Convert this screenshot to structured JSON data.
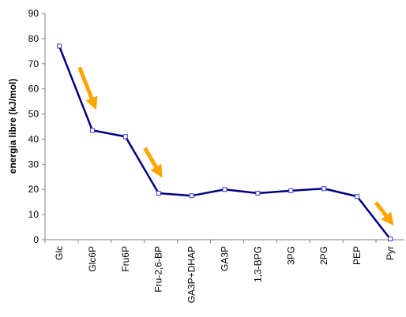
{
  "chart_data": {
    "type": "line",
    "title": "",
    "xlabel": "",
    "ylabel": "energia libre  (kJ/mol)",
    "ylim": [
      0,
      90
    ],
    "yticks": [
      0,
      10,
      20,
      30,
      40,
      50,
      60,
      70,
      80,
      90
    ],
    "grid": false,
    "legend": "none",
    "categories": [
      "Glc",
      "Glc6P",
      "Fru6P",
      "Fru-2,6-BP",
      "GA3P+DHAP",
      "GA3P",
      "1,3-BPG",
      "3PG",
      "2PG",
      "PEP",
      "Pyr"
    ],
    "series": [
      {
        "values": [
          77,
          43.5,
          41,
          18.5,
          17.5,
          20,
          18.5,
          19.5,
          20.3,
          17.2,
          0.3
        ],
        "color": "#000080",
        "marker": "open-square"
      }
    ],
    "annotations": [
      {
        "type": "arrow",
        "color": "#FFA500",
        "between": [
          "Glc",
          "Glc6P"
        ]
      },
      {
        "type": "arrow",
        "color": "#FFA500",
        "between": [
          "Fru6P",
          "Fru-2,6-BP"
        ]
      },
      {
        "type": "arrow",
        "color": "#FFA500",
        "between": [
          "PEP",
          "Pyr"
        ]
      }
    ]
  }
}
